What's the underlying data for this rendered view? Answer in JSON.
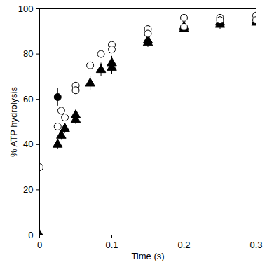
{
  "chart_data": {
    "type": "scatter",
    "x_label": "Time (s)",
    "y_label": "% ATP hydrolysis",
    "xlim": [
      0,
      0.3
    ],
    "xticks": [
      0,
      0.1,
      0.2,
      0.3
    ],
    "ylim": [
      0,
      100
    ],
    "yticks": [
      0,
      20,
      40,
      60,
      80,
      100
    ],
    "grid": false,
    "series": [
      {
        "color": "#000000",
        "marker": "triangle",
        "x": [
          0,
          0.025,
          0.03,
          0.035,
          0.05,
          0.05,
          0.07,
          0.085,
          0.1,
          0.1,
          0.15,
          0.15,
          0.2,
          0.2,
          0.25,
          0.25,
          0.3,
          0.3
        ],
        "values": [
          0,
          40,
          44,
          47,
          53,
          51,
          67,
          73,
          76,
          74,
          86,
          85,
          92,
          91,
          94,
          93,
          94,
          94
        ],
        "errors": [
          0,
          2,
          2,
          2,
          2,
          2,
          3,
          3,
          3,
          3,
          2,
          2,
          2,
          2,
          2,
          2,
          2,
          2
        ]
      },
      {
        "color": "#000000",
        "marker": "open_circle",
        "x": [
          0,
          0.025,
          0.03,
          0.035,
          0.05,
          0.05,
          0.07,
          0.085,
          0.1,
          0.1,
          0.15,
          0.15,
          0.2,
          0.2,
          0.25,
          0.25,
          0.3,
          0.3
        ],
        "values": [
          30,
          48,
          55,
          52,
          66,
          64,
          75,
          80,
          84,
          82,
          91,
          89,
          96,
          92,
          96,
          95,
          97,
          95
        ],
        "errors": [
          0,
          1,
          1,
          1,
          1,
          1,
          1,
          1,
          1,
          1,
          1,
          1,
          1,
          1,
          1,
          1,
          1,
          1
        ]
      },
      {
        "color": "#000000",
        "marker": "circle",
        "x": [
          0.025
        ],
        "values": [
          61
        ],
        "errors": [
          4
        ]
      }
    ]
  }
}
